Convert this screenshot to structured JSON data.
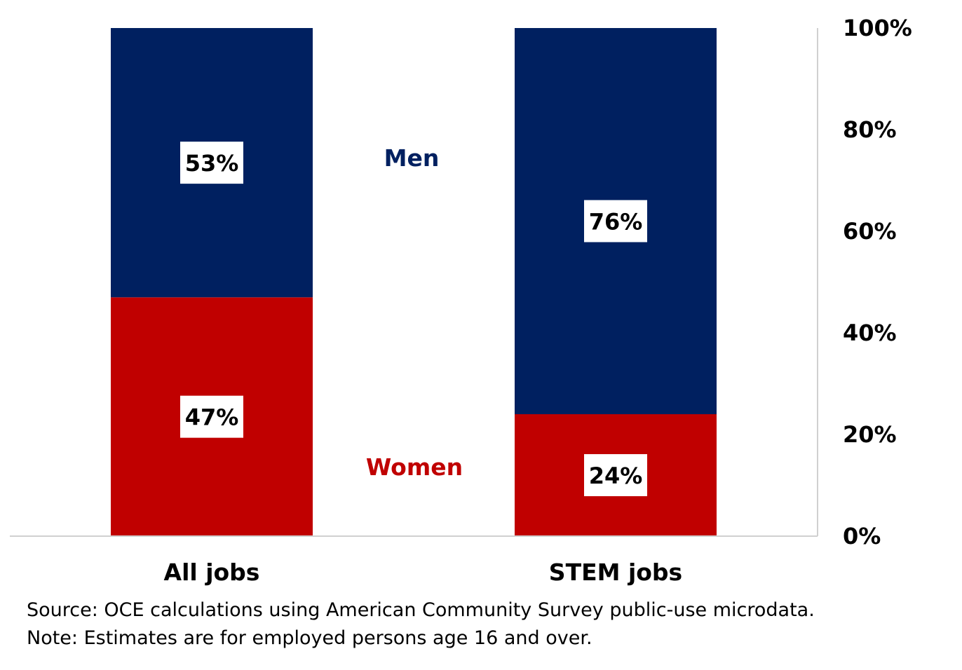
{
  "chart_data": {
    "type": "bar",
    "stacked": true,
    "categories": [
      "All jobs",
      "STEM jobs"
    ],
    "series": [
      {
        "name": "Women",
        "values": [
          47,
          24
        ],
        "color": "#c00000"
      },
      {
        "name": "Men",
        "values": [
          53,
          76
        ],
        "color": "#002060"
      }
    ],
    "value_labels": [
      [
        "47%",
        "24%"
      ],
      [
        "53%",
        "76%"
      ]
    ],
    "ylim": [
      0,
      100
    ],
    "yticks": [
      0,
      20,
      40,
      60,
      80,
      100
    ],
    "ytick_labels": [
      "0%",
      "20%",
      "40%",
      "60%",
      "80%",
      "100%"
    ],
    "y_axis_position": "right",
    "legend_placement": "inline-between-bars",
    "grid": false
  },
  "footnotes": {
    "source": "Source: OCE calculations using American Community Survey public-use microdata.",
    "note": "Note: Estimates are for employed persons age 16 and over."
  }
}
